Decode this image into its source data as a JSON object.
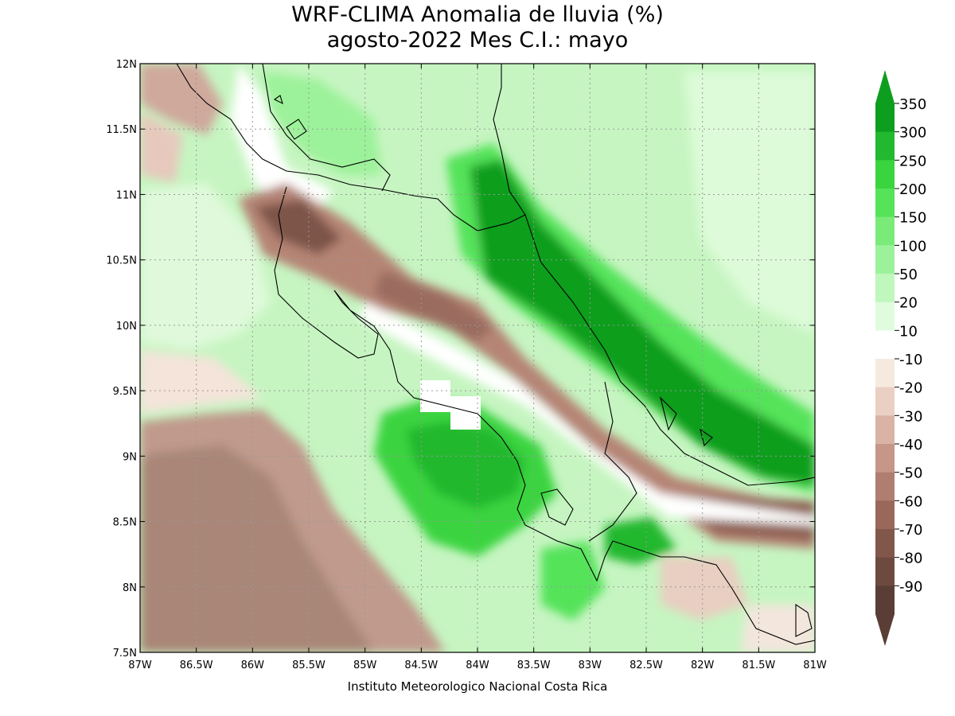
{
  "title_line1": "WRF-CLIMA Anomalia de lluvia (%)",
  "title_line2": "agosto-2022 Mes C.I.: mayo",
  "footer": "Instituto Meteorologico Nacional Costa Rica",
  "map": {
    "lon_ticks": [
      "87W",
      "86.5W",
      "86W",
      "85.5W",
      "85W",
      "84.5W",
      "84W",
      "83.5W",
      "83W",
      "82.5W",
      "82W",
      "81.5W",
      "81W"
    ],
    "lat_ticks": [
      "12N",
      "11.5N",
      "11N",
      "10.5N",
      "10N",
      "9.5N",
      "9N",
      "8.5N",
      "8N",
      "7.5N"
    ],
    "lon_range": [
      -87,
      -81
    ],
    "lat_range": [
      7.5,
      12
    ],
    "grid": true
  },
  "legend": {
    "labels": [
      "350",
      "300",
      "250",
      "200",
      "150",
      "100",
      "50",
      "20",
      "10",
      "-10",
      "-20",
      "-30",
      "-40",
      "-50",
      "-60",
      "-70",
      "-80",
      "-90"
    ],
    "colors": [
      "#0d9e1f",
      "#22b82f",
      "#3ad43f",
      "#55e35a",
      "#7aeb78",
      "#9cf29a",
      "#bff7bc",
      "#e0fbdd",
      "#ffffff",
      "#f6eadf",
      "#ead0c3",
      "#d9b3a6",
      "#c69789",
      "#b07e70",
      "#99685b",
      "#82574b",
      "#6d4a40",
      "#5a3e35"
    ]
  }
}
